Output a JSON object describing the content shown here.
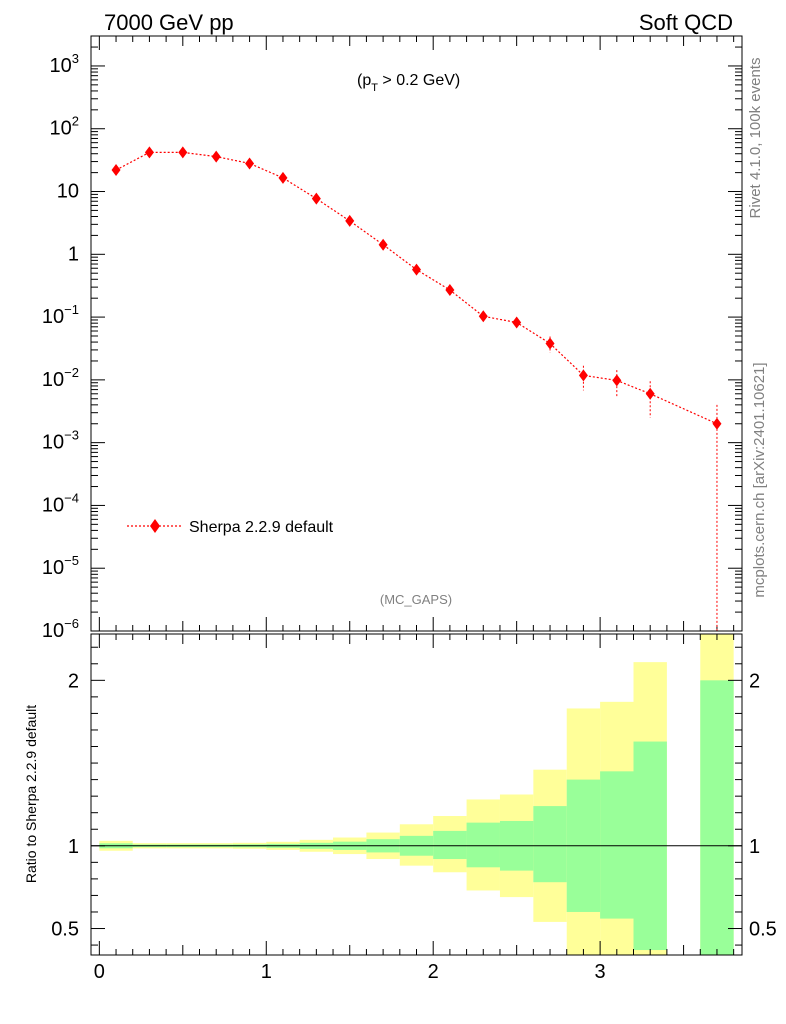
{
  "header": {
    "left_title": "7000 GeV pp",
    "right_title": "Soft QCD",
    "cut_label": "(p",
    "cut_sub": "T",
    "cut_rest": " > 0.2 GeV)",
    "analysis_tag": "(MC_GAPS)"
  },
  "side_labels": {
    "rivet": "Rivet 4.1.0,  100k events",
    "mcplots": "mcplots.cern.ch [arXiv:2401.10621]"
  },
  "legend": {
    "entry": "Sherpa 2.2.9 default"
  },
  "colors": {
    "series": "#ff0000",
    "band_inner": "#99ff99",
    "band_outer": "#ffff99"
  },
  "chart_data": [
    {
      "type": "scatter",
      "title": "",
      "xlabel": "",
      "ylabel": "",
      "yscale": "log",
      "xlim": [
        -0.05,
        3.85
      ],
      "ylim": [
        1e-06,
        3000
      ],
      "y_ticks": [
        {
          "base": "10",
          "exp": "3"
        },
        {
          "base": "10",
          "exp": "2"
        },
        {
          "base": "10",
          "exp": ""
        },
        {
          "base": "1",
          "exp": ""
        },
        {
          "base": "10",
          "exp": "−1"
        },
        {
          "base": "10",
          "exp": "−2"
        },
        {
          "base": "10",
          "exp": "−3"
        },
        {
          "base": "10",
          "exp": "−4"
        },
        {
          "base": "10",
          "exp": "−5"
        },
        {
          "base": "10",
          "exp": "−6"
        }
      ],
      "series": [
        {
          "name": "Sherpa 2.2.9 default",
          "x": [
            0.1,
            0.3,
            0.5,
            0.7,
            0.9,
            1.1,
            1.3,
            1.5,
            1.7,
            1.9,
            2.1,
            2.3,
            2.5,
            2.7,
            2.9,
            3.1,
            3.3,
            3.7
          ],
          "y": [
            22,
            42,
            42,
            36,
            28,
            16.5,
            7.7,
            3.4,
            1.42,
            0.57,
            0.27,
            0.103,
            0.082,
            0.038,
            0.0118,
            0.0098,
            0.006,
            0.002
          ],
          "y_err": [
            0.9,
            1.3,
            1.3,
            1.2,
            1.0,
            0.8,
            0.5,
            0.3,
            0.13,
            0.07,
            0.04,
            0.02,
            0.017,
            0.011,
            0.005,
            0.0045,
            0.0035,
            0.002
          ]
        }
      ]
    },
    {
      "type": "area",
      "ylabel": "Ratio to Sherpa 2.2.9 default",
      "xlim": [
        -0.05,
        3.85
      ],
      "ylim": [
        0.34,
        2.28
      ],
      "x_ticks": [
        "0",
        "1",
        "2",
        "3"
      ],
      "y_ticks": [
        "0.5",
        "1",
        "2"
      ],
      "reference_line": 1,
      "bins": [
        {
          "lo": 0.0,
          "hi": 0.2,
          "inner": [
            0.985,
            1.015
          ],
          "outer": [
            0.97,
            1.03
          ]
        },
        {
          "lo": 0.2,
          "hi": 0.4,
          "inner": [
            0.992,
            1.008
          ],
          "outer": [
            0.984,
            1.016
          ]
        },
        {
          "lo": 0.4,
          "hi": 0.6,
          "inner": [
            0.992,
            1.008
          ],
          "outer": [
            0.984,
            1.016
          ]
        },
        {
          "lo": 0.6,
          "hi": 0.8,
          "inner": [
            0.992,
            1.008
          ],
          "outer": [
            0.984,
            1.016
          ]
        },
        {
          "lo": 0.8,
          "hi": 1.0,
          "inner": [
            0.991,
            1.009
          ],
          "outer": [
            0.982,
            1.018
          ]
        },
        {
          "lo": 1.0,
          "hi": 1.2,
          "inner": [
            0.988,
            1.012
          ],
          "outer": [
            0.976,
            1.024
          ]
        },
        {
          "lo": 1.2,
          "hi": 1.4,
          "inner": [
            0.982,
            1.018
          ],
          "outer": [
            0.964,
            1.036
          ]
        },
        {
          "lo": 1.4,
          "hi": 1.6,
          "inner": [
            0.975,
            1.025
          ],
          "outer": [
            0.95,
            1.05
          ]
        },
        {
          "lo": 1.6,
          "hi": 1.8,
          "inner": [
            0.96,
            1.04
          ],
          "outer": [
            0.92,
            1.08
          ]
        },
        {
          "lo": 1.8,
          "hi": 2.0,
          "inner": [
            0.94,
            1.06
          ],
          "outer": [
            0.88,
            1.13
          ]
        },
        {
          "lo": 2.0,
          "hi": 2.2,
          "inner": [
            0.92,
            1.09
          ],
          "outer": [
            0.84,
            1.18
          ]
        },
        {
          "lo": 2.2,
          "hi": 2.4,
          "inner": [
            0.87,
            1.14
          ],
          "outer": [
            0.73,
            1.28
          ]
        },
        {
          "lo": 2.4,
          "hi": 2.6,
          "inner": [
            0.85,
            1.15
          ],
          "outer": [
            0.69,
            1.31
          ]
        },
        {
          "lo": 2.6,
          "hi": 2.8,
          "inner": [
            0.78,
            1.24
          ],
          "outer": [
            0.54,
            1.46
          ]
        },
        {
          "lo": 2.8,
          "hi": 3.0,
          "inner": [
            0.6,
            1.4
          ],
          "outer": [
            0.34,
            1.83
          ]
        },
        {
          "lo": 3.0,
          "hi": 3.2,
          "inner": [
            0.56,
            1.45
          ],
          "outer": [
            0.34,
            1.87
          ]
        },
        {
          "lo": 3.2,
          "hi": 3.4,
          "inner": [
            0.37,
            1.63
          ],
          "outer": [
            0.34,
            2.11
          ]
        },
        {
          "lo": 3.6,
          "hi": 3.8,
          "inner": [
            0.34,
            2.0
          ],
          "outer": [
            0.34,
            2.28
          ]
        }
      ]
    }
  ]
}
